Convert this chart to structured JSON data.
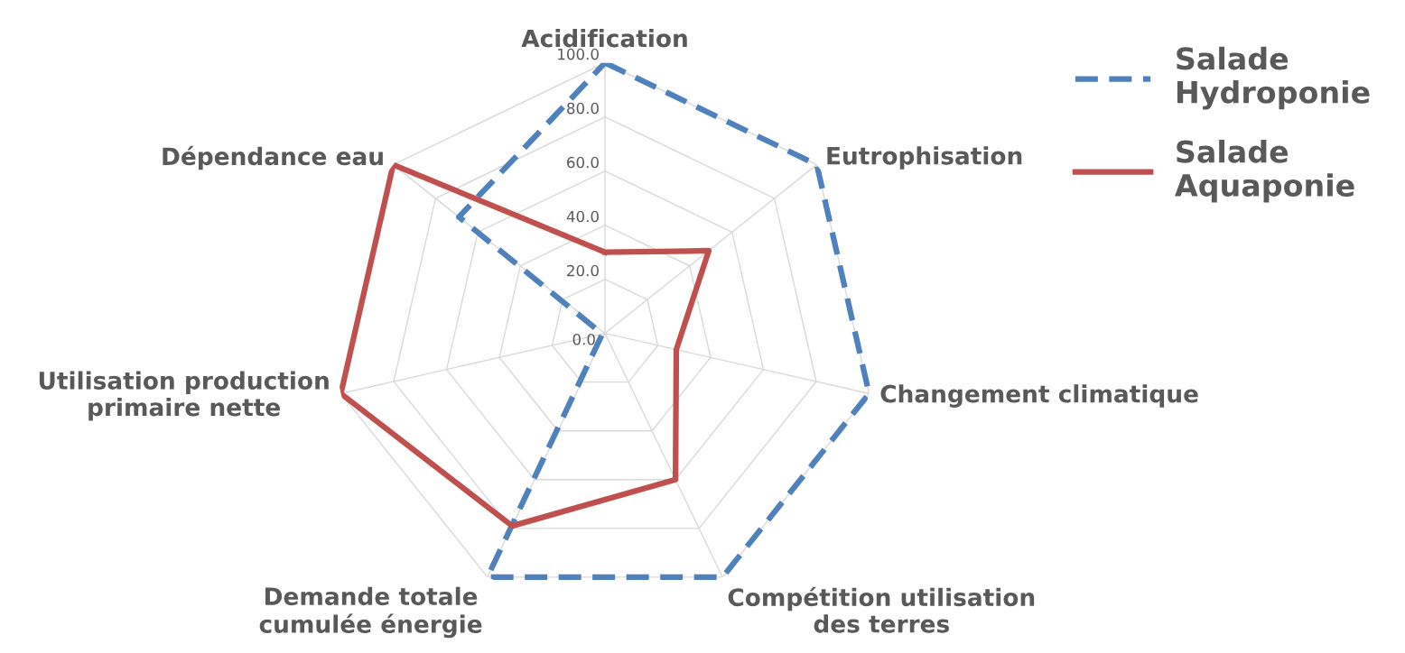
{
  "chart_data": {
    "type": "radar",
    "categories": [
      "Acidification",
      "Eutrophisation",
      "Changement climatique",
      "Compétition utilisation\ndes terres",
      "Demande totale\ncumulée énergie",
      "Utilisation production\nprimaire nette",
      "Dépendance eau"
    ],
    "series": [
      {
        "name": "Salade\nHydroponie",
        "color": "#4f81bd",
        "line_style": "dashed",
        "values": [
          100,
          100,
          100,
          100,
          100,
          1,
          69
        ]
      },
      {
        "name": "Salade\nAquaponie",
        "color": "#c0504d",
        "line_style": "solid",
        "values": [
          30,
          49,
          27,
          60,
          79,
          100,
          100
        ]
      }
    ],
    "ylim": [
      0,
      100
    ],
    "yticks": [
      {
        "value": 0,
        "label": "0.0"
      },
      {
        "value": 20,
        "label": "20.0"
      },
      {
        "value": 40,
        "label": "40.0"
      },
      {
        "value": 60,
        "label": "60.0"
      },
      {
        "value": 80,
        "label": "80.0"
      },
      {
        "value": 100,
        "label": "100.0"
      }
    ],
    "grid": true,
    "legend": "top right",
    "marker": "none"
  }
}
